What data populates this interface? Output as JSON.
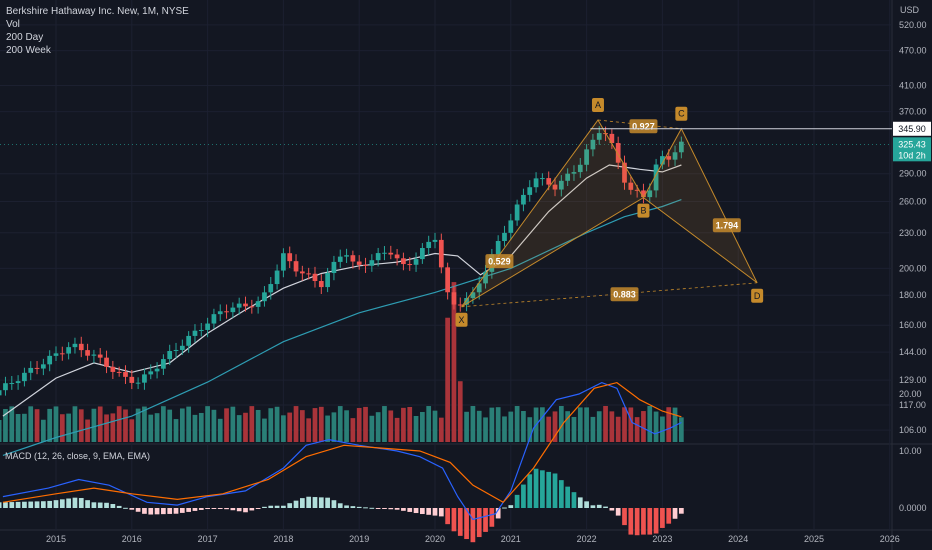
{
  "legend": {
    "title": "Berkshire Hathaway Inc. New, 1M, NYSE",
    "vol": "Vol",
    "ma1": "200 Day",
    "ma2": "200 Week"
  },
  "macd_label": "MACD (12, 26, close, 9, EMA, EMA)",
  "currency": "USD",
  "colors": {
    "bg": "#131722",
    "up": "#26a69a",
    "down": "#ef5350",
    "vol_up": "#2a7f77",
    "vol_down": "#a9343a",
    "ma_day": "#d1d4dc",
    "ma_week": "#2e9db3",
    "pattern": "#c58a2b",
    "macd_line": "#2962ff",
    "signal_line": "#ff6d00"
  },
  "chart_data": [
    {
      "type": "candlestick",
      "title": "Berkshire Hathaway Inc. New, 1M, NYSE",
      "x_ticks": [
        "2015",
        "2016",
        "2017",
        "2018",
        "2019",
        "2020",
        "2021",
        "2022",
        "2023",
        "2024",
        "2025",
        "2026"
      ],
      "y_ticks": [
        106,
        117,
        129,
        144,
        160,
        180,
        200,
        230,
        260,
        290,
        370,
        410,
        470,
        520
      ],
      "y_scale": "log",
      "ylim": [
        100,
        560
      ],
      "last_price": "325.43",
      "countdown": "10d 2h",
      "level_price": "345.90",
      "anchors": [
        {
          "t": 2014.25,
          "p": 124
        },
        {
          "t": 2014.9,
          "p": 140
        },
        {
          "t": 2015.2,
          "p": 148
        },
        {
          "t": 2015.5,
          "p": 142
        },
        {
          "t": 2015.9,
          "p": 130
        },
        {
          "t": 2016.1,
          "p": 128
        },
        {
          "t": 2016.5,
          "p": 143
        },
        {
          "t": 2016.9,
          "p": 158
        },
        {
          "t": 2017.2,
          "p": 170
        },
        {
          "t": 2017.7,
          "p": 175
        },
        {
          "t": 2018.0,
          "p": 210
        },
        {
          "t": 2018.2,
          "p": 198
        },
        {
          "t": 2018.5,
          "p": 188
        },
        {
          "t": 2018.8,
          "p": 216
        },
        {
          "t": 2018.95,
          "p": 200
        },
        {
          "t": 2019.4,
          "p": 215
        },
        {
          "t": 2019.6,
          "p": 200
        },
        {
          "t": 2020.0,
          "p": 226
        },
        {
          "t": 2020.2,
          "p": 172
        },
        {
          "t": 2020.5,
          "p": 180
        },
        {
          "t": 2020.9,
          "p": 230
        },
        {
          "t": 2021.3,
          "p": 286
        },
        {
          "t": 2021.6,
          "p": 275
        },
        {
          "t": 2021.9,
          "p": 300
        },
        {
          "t": 2022.2,
          "p": 350
        },
        {
          "t": 2022.35,
          "p": 320
        },
        {
          "t": 2022.55,
          "p": 272
        },
        {
          "t": 2022.8,
          "p": 265
        },
        {
          "t": 2022.95,
          "p": 308
        },
        {
          "t": 2023.1,
          "p": 310
        },
        {
          "t": 2023.25,
          "p": 325
        }
      ],
      "moving_averages": [
        {
          "name": "200 Day",
          "points": [
            [
              2014.3,
              112
            ],
            [
              2015.0,
              130
            ],
            [
              2015.5,
              138
            ],
            [
              2016.0,
              133
            ],
            [
              2016.5,
              138
            ],
            [
              2017.0,
              155
            ],
            [
              2017.5,
              170
            ],
            [
              2018.0,
              185
            ],
            [
              2018.5,
              196
            ],
            [
              2019.0,
              202
            ],
            [
              2019.5,
              205
            ],
            [
              2020.0,
              212
            ],
            [
              2020.3,
              210
            ],
            [
              2020.6,
              195
            ],
            [
              2021.0,
              210
            ],
            [
              2021.5,
              250
            ],
            [
              2022.0,
              285
            ],
            [
              2022.3,
              300
            ],
            [
              2022.7,
              295
            ],
            [
              2023.0,
              292
            ],
            [
              2023.25,
              300
            ]
          ]
        },
        {
          "name": "200 Week",
          "points": [
            [
              2014.3,
              96
            ],
            [
              2015.0,
              103
            ],
            [
              2016.0,
              112
            ],
            [
              2017.0,
              128
            ],
            [
              2018.0,
              150
            ],
            [
              2019.0,
              168
            ],
            [
              2020.0,
              182
            ],
            [
              2021.0,
              200
            ],
            [
              2022.0,
              230
            ],
            [
              2022.5,
              245
            ],
            [
              2023.0,
              255
            ],
            [
              2023.25,
              262
            ]
          ]
        }
      ],
      "harmonic_pattern": {
        "points": [
          {
            "label": "X",
            "t": 2020.35,
            "p": 172
          },
          {
            "label": "A",
            "t": 2022.15,
            "p": 358
          },
          {
            "label": "B",
            "t": 2022.75,
            "p": 264
          },
          {
            "label": "C",
            "t": 2023.25,
            "p": 346
          },
          {
            "label": "D",
            "t": 2024.25,
            "p": 189
          }
        ],
        "ratios": [
          {
            "value": "0.529",
            "t": 2020.85,
            "p": 205
          },
          {
            "value": "0.927",
            "t": 2022.75,
            "p": 348
          },
          {
            "value": "1.794",
            "t": 2023.85,
            "p": 236
          },
          {
            "value": "0.883",
            "t": 2022.5,
            "p": 180
          }
        ]
      }
    },
    {
      "type": "bar",
      "title": "Vol"
    },
    {
      "type": "line",
      "title": "MACD (12, 26, close, 9, EMA, EMA)",
      "y_ticks": [
        "20.00",
        "10.00",
        "0.0000"
      ],
      "series": [
        {
          "name": "MACD",
          "points": [
            [
              2014.3,
              2
            ],
            [
              2014.9,
              3.5
            ],
            [
              2015.3,
              5
            ],
            [
              2015.7,
              4
            ],
            [
              2016.2,
              1
            ],
            [
              2016.6,
              0.5
            ],
            [
              2017.0,
              2
            ],
            [
              2017.5,
              3
            ],
            [
              2018.0,
              7
            ],
            [
              2018.3,
              11
            ],
            [
              2018.6,
              12
            ],
            [
              2019.0,
              11
            ],
            [
              2019.5,
              10
            ],
            [
              2019.8,
              9
            ],
            [
              2020.1,
              7
            ],
            [
              2020.3,
              2
            ],
            [
              2020.5,
              -2
            ],
            [
              2020.8,
              -1
            ],
            [
              2021.0,
              3
            ],
            [
              2021.3,
              14
            ],
            [
              2021.6,
              19
            ],
            [
              2021.9,
              20
            ],
            [
              2022.2,
              22
            ],
            [
              2022.4,
              21
            ],
            [
              2022.6,
              15
            ],
            [
              2022.9,
              13
            ],
            [
              2023.1,
              14
            ],
            [
              2023.25,
              15
            ]
          ]
        },
        {
          "name": "Signal",
          "points": [
            [
              2014.3,
              1
            ],
            [
              2015.0,
              2.5
            ],
            [
              2015.5,
              3.5
            ],
            [
              2016.0,
              2.5
            ],
            [
              2016.6,
              1.5
            ],
            [
              2017.2,
              2.5
            ],
            [
              2017.8,
              5
            ],
            [
              2018.3,
              9
            ],
            [
              2018.8,
              11
            ],
            [
              2019.3,
              10.5
            ],
            [
              2019.8,
              10
            ],
            [
              2020.2,
              8
            ],
            [
              2020.5,
              4
            ],
            [
              2020.9,
              1
            ],
            [
              2021.3,
              7
            ],
            [
              2021.7,
              15
            ],
            [
              2022.1,
              21
            ],
            [
              2022.4,
              22
            ],
            [
              2022.7,
              19
            ],
            [
              2023.0,
              17
            ],
            [
              2023.25,
              16
            ]
          ]
        }
      ]
    }
  ]
}
